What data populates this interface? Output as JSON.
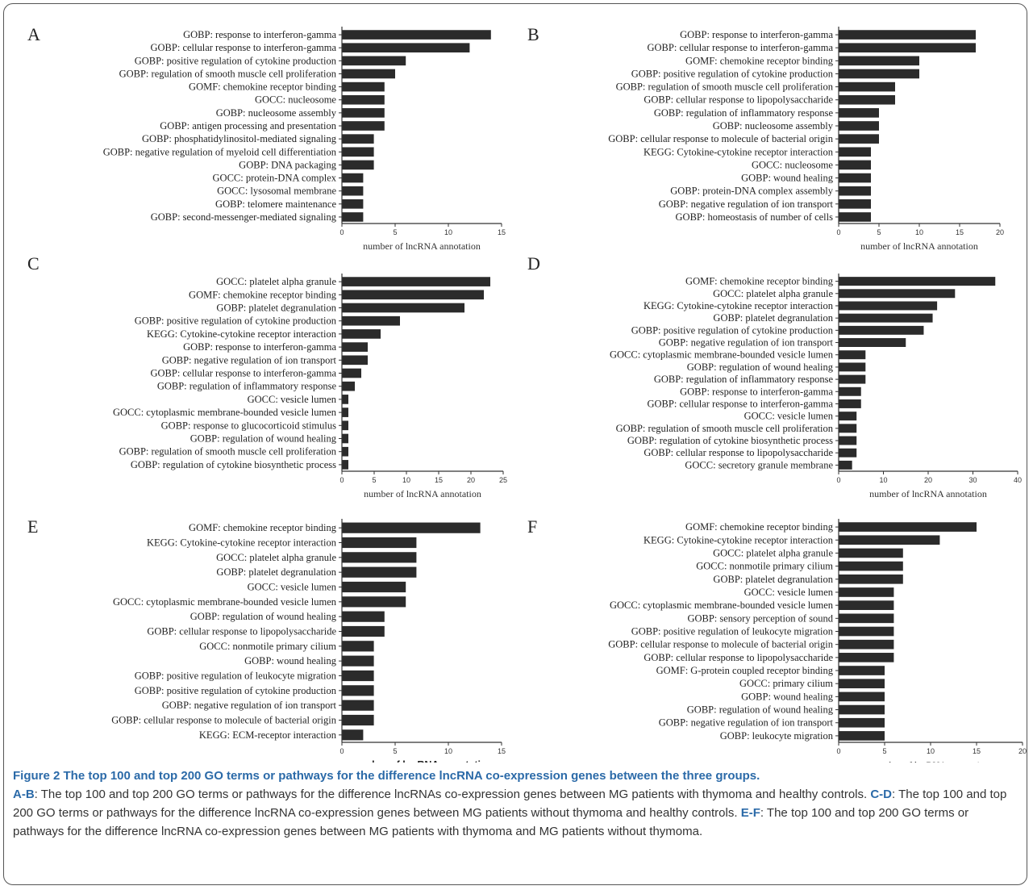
{
  "chart_data": [
    {
      "type": "bar",
      "orientation": "horizontal",
      "panel": "A",
      "categories": [
        "GOBP: response to interferon-gamma",
        "GOBP: cellular response to interferon-gamma",
        "GOBP: positive regulation of cytokine production",
        "GOBP: regulation of smooth muscle cell proliferation",
        "GOMF: chemokine receptor binding",
        "GOCC: nucleosome",
        "GOBP: nucleosome assembly",
        "GOBP: antigen processing and presentation",
        "GOBP: phosphatidylinositol-mediated signaling",
        "GOBP: negative regulation of myeloid cell differentiation",
        "GOBP: DNA packaging",
        "GOCC: protein-DNA complex",
        "GOCC: lysosomal membrane",
        "GOBP: telomere maintenance",
        "GOBP: second-messenger-mediated signaling"
      ],
      "values": [
        14,
        12,
        6,
        5,
        4,
        4,
        4,
        4,
        3,
        3,
        3,
        2,
        2,
        2,
        2
      ],
      "xlim": [
        0,
        15
      ],
      "xticks": [
        "0",
        "5",
        "10",
        "15"
      ],
      "xlabel": "number of lncRNA annotation"
    },
    {
      "type": "bar",
      "orientation": "horizontal",
      "panel": "B",
      "categories": [
        "GOBP: response to interferon-gamma",
        "GOBP: cellular response to interferon-gamma",
        "GOMF: chemokine receptor binding",
        "GOBP: positive regulation of cytokine production",
        "GOBP: regulation of smooth muscle cell proliferation",
        "GOBP: cellular response to lipopolysaccharide",
        "GOBP: regulation of inflammatory response",
        "GOBP: nucleosome assembly",
        "GOBP: cellular response to molecule of bacterial origin",
        "KEGG: Cytokine-cytokine receptor interaction",
        "GOCC: nucleosome",
        "GOBP: wound healing",
        "GOBP: protein-DNA complex assembly",
        "GOBP: negative regulation of ion transport",
        "GOBP: homeostasis of number of cells"
      ],
      "values": [
        17,
        17,
        10,
        10,
        7,
        7,
        5,
        5,
        5,
        4,
        4,
        4,
        4,
        4,
        4
      ],
      "xlim": [
        0,
        20
      ],
      "xticks": [
        "0",
        "5",
        "10",
        "15",
        "20"
      ],
      "xlabel": "number of lncRNA annotation"
    },
    {
      "type": "bar",
      "orientation": "horizontal",
      "panel": "C",
      "categories": [
        "GOCC: platelet alpha granule",
        "GOMF: chemokine receptor binding",
        "GOBP: platelet degranulation",
        "GOBP: positive regulation of cytokine production",
        "KEGG: Cytokine-cytokine receptor interaction",
        "GOBP: response to interferon-gamma",
        "GOBP: negative regulation of ion transport",
        "GOBP: cellular response to interferon-gamma",
        "GOBP: regulation of inflammatory response",
        "GOCC: vesicle lumen",
        "GOCC: cytoplasmic membrane-bounded vesicle lumen",
        "GOBP: response to glucocorticoid stimulus",
        "GOBP: regulation of wound healing",
        "GOBP: regulation of smooth muscle cell proliferation",
        "GOBP: regulation of cytokine biosynthetic process"
      ],
      "values": [
        23,
        22,
        19,
        9,
        6,
        4,
        4,
        3,
        2,
        1,
        1,
        1,
        1,
        1,
        1
      ],
      "xlim": [
        0,
        25
      ],
      "xticks": [
        "0",
        "5",
        "10",
        "15",
        "20",
        "25"
      ],
      "xlabel": "number of lncRNA annotation"
    },
    {
      "type": "bar",
      "orientation": "horizontal",
      "panel": "D",
      "categories": [
        "GOMF: chemokine receptor binding",
        "GOCC: platelet alpha granule",
        "KEGG: Cytokine-cytokine receptor interaction",
        "GOBP: platelet degranulation",
        "GOBP: positive regulation of cytokine production",
        "GOBP: negative regulation of ion transport",
        "GOCC: cytoplasmic membrane-bounded vesicle lumen",
        "GOBP: regulation of wound healing",
        "GOBP: regulation of inflammatory response",
        "GOBP: response to interferon-gamma",
        "GOBP: cellular response to interferon-gamma",
        "GOCC: vesicle lumen",
        "GOBP: regulation of smooth muscle cell proliferation",
        "GOBP: regulation of cytokine biosynthetic process",
        "GOBP: cellular response to lipopolysaccharide",
        "GOCC: secretory granule membrane"
      ],
      "values": [
        35,
        26,
        22,
        21,
        19,
        15,
        6,
        6,
        6,
        5,
        5,
        4,
        4,
        4,
        4,
        3
      ],
      "xlim": [
        0,
        40
      ],
      "xticks": [
        "0",
        "10",
        "20",
        "30",
        "40"
      ],
      "xlabel": "number of lncRNA annotation"
    },
    {
      "type": "bar",
      "orientation": "horizontal",
      "panel": "E",
      "categories": [
        "GOMF: chemokine receptor binding",
        "KEGG: Cytokine-cytokine receptor interaction",
        "GOCC: platelet alpha granule",
        "GOBP: platelet degranulation",
        "GOCC: vesicle lumen",
        "GOCC: cytoplasmic membrane-bounded vesicle lumen",
        "GOBP: regulation of wound healing",
        "GOBP: cellular response to lipopolysaccharide",
        "GOCC: nonmotile primary cilium",
        "GOBP: wound healing",
        "GOBP: positive regulation of leukocyte migration",
        "GOBP: positive regulation of cytokine production",
        "GOBP: negative regulation of ion transport",
        "GOBP: cellular response to molecule of bacterial origin",
        "KEGG: ECM-receptor interaction"
      ],
      "values": [
        13,
        7,
        7,
        7,
        6,
        6,
        4,
        4,
        3,
        3,
        3,
        3,
        3,
        3,
        2
      ],
      "xlim": [
        0,
        15
      ],
      "xticks": [
        "0",
        "5",
        "10",
        "15"
      ],
      "xlabel": "number of lncRNA annotation"
    },
    {
      "type": "bar",
      "orientation": "horizontal",
      "panel": "F",
      "categories": [
        "GOMF: chemokine receptor binding",
        "KEGG: Cytokine-cytokine receptor interaction",
        "GOCC: platelet alpha granule",
        "GOCC: nonmotile primary cilium",
        "GOBP: platelet degranulation",
        "GOCC: vesicle lumen",
        "GOCC: cytoplasmic membrane-bounded vesicle lumen",
        "GOBP: sensory perception of sound",
        "GOBP: positive regulation of leukocyte migration",
        "GOBP: cellular response to molecule of bacterial origin",
        "GOBP: cellular response to lipopolysaccharide",
        "GOMF: G-protein coupled receptor binding",
        "GOCC: primary cilium",
        "GOBP: wound healing",
        "GOBP: regulation of wound healing",
        "GOBP: negative regulation of ion transport",
        "GOBP: leukocyte migration"
      ],
      "values": [
        15,
        11,
        7,
        7,
        7,
        6,
        6,
        6,
        6,
        6,
        6,
        5,
        5,
        5,
        5,
        5,
        5
      ],
      "xlim": [
        0,
        20
      ],
      "xticks": [
        "0",
        "5",
        "10",
        "15",
        "20"
      ],
      "xlabel": "number of lncRNA annotation"
    }
  ],
  "caption": {
    "title": "Figure 2 The top 100 and top 200 GO terms or pathways for the difference lncRNA co-expression genes between the three groups.",
    "ab_key": "A-B",
    "ab_text": ": The top 100 and top 200 GO terms or pathways for the difference lncRNAs co-expression genes between MG patients with thymoma and healthy controls. ",
    "cd_key": "C-D",
    "cd_text": ": The top 100 and top 200 GO terms or pathways for the difference lncRNA co-expression genes between MG patients without thymoma and healthy controls. ",
    "ef_key": "E-F",
    "ef_text": ": The top 100 and top 200 GO terms or pathways for the difference lncRNA co-expression genes between MG patients with thymoma and MG patients without thymoma."
  },
  "colors": {
    "bar": "#2b2b2b",
    "axis": "#333333",
    "caption_accent": "#2b6aa8",
    "frame": "#555555"
  }
}
